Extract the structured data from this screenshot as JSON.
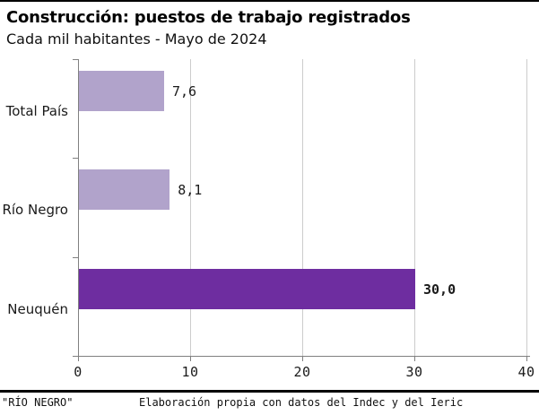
{
  "header": {
    "title": "Construcción: puestos de trabajo registrados",
    "subtitle": "Cada mil habitantes - Mayo de 2024"
  },
  "chart_data": {
    "type": "bar",
    "orientation": "horizontal",
    "title": "Construcción: puestos de trabajo registrados",
    "subtitle": "Cada mil habitantes - Mayo de 2024",
    "categories": [
      "Total País",
      "Río Negro",
      "Neuquén"
    ],
    "values": [
      7.6,
      8.1,
      30.0
    ],
    "value_labels": [
      "7,6",
      "8,1",
      "30,0"
    ],
    "emphasized": [
      false,
      false,
      true
    ],
    "bar_colors": [
      "#b1a3cb",
      "#b1a3cb",
      "#6e2da0"
    ],
    "xlabel": "",
    "ylabel": "",
    "xlim": [
      0,
      40
    ],
    "x_ticks": [
      0,
      10,
      20,
      30,
      40
    ],
    "grid": "vertical-gridlines-on"
  },
  "footer": {
    "source": "\"RÍO NEGRO\"",
    "credit": "Elaboración propia con datos del Indec y del Ieric"
  },
  "colors": {
    "bar_light": "#b1a3cb",
    "bar_dark": "#6e2da0",
    "gridline": "#cccccc",
    "axis": "#808080",
    "rule": "#000000",
    "background": "#ffffff"
  }
}
